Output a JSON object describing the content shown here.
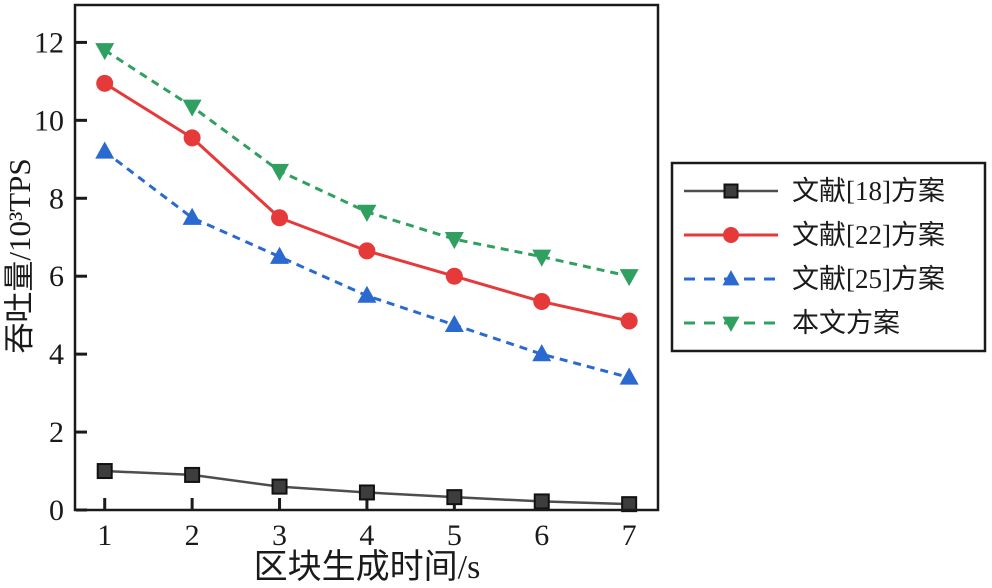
{
  "figure": {
    "background": "#ffffff",
    "frame_color": "#1a1a1a",
    "text_color": "#1a1a1a"
  },
  "chart_data": {
    "type": "line",
    "title": "",
    "xlabel": "区块生成时间/s",
    "ylabel": "吞吐量/10³TPS",
    "x": [
      1,
      2,
      3,
      4,
      5,
      6,
      7
    ],
    "xticks": [
      1,
      2,
      3,
      4,
      5,
      6,
      7
    ],
    "yticks": [
      0,
      2,
      4,
      6,
      8,
      10,
      12
    ],
    "xlim": [
      0.66,
      7.33
    ],
    "ylim": [
      0,
      12.96
    ],
    "grid": false,
    "legend": {
      "position": "outside-right",
      "border": true
    },
    "series": [
      {
        "name": "文献[18]方案",
        "color": "#4d4d4d",
        "marker": "square",
        "marker_fill": "#3d3d3d",
        "marker_edge": "#111111",
        "line_style": "solid",
        "line_width": 2.5,
        "values": [
          1.0,
          0.9,
          0.6,
          0.45,
          0.33,
          0.22,
          0.15
        ]
      },
      {
        "name": "文献[22]方案",
        "color": "#e63a3a",
        "marker": "circle",
        "marker_fill": "#e63a3a",
        "marker_edge": "#e63a3a",
        "line_style": "solid",
        "line_width": 3,
        "values": [
          10.95,
          9.55,
          7.5,
          6.65,
          6.0,
          5.35,
          4.85
        ]
      },
      {
        "name": "文献[25]方案",
        "color": "#2a6ad0",
        "marker": "triangle-up",
        "marker_fill": "#2a6ad0",
        "marker_edge": "#2a6ad0",
        "line_style": "dashed",
        "line_width": 3,
        "values": [
          9.2,
          7.5,
          6.5,
          5.5,
          4.75,
          4.0,
          3.4
        ]
      },
      {
        "name": "本文方案",
        "color": "#30a060",
        "marker": "triangle-down",
        "marker_fill": "#30a060",
        "marker_edge": "#30a060",
        "line_style": "dashed",
        "line_width": 3,
        "values": [
          11.8,
          10.35,
          8.7,
          7.65,
          6.95,
          6.5,
          6.0
        ]
      }
    ]
  }
}
